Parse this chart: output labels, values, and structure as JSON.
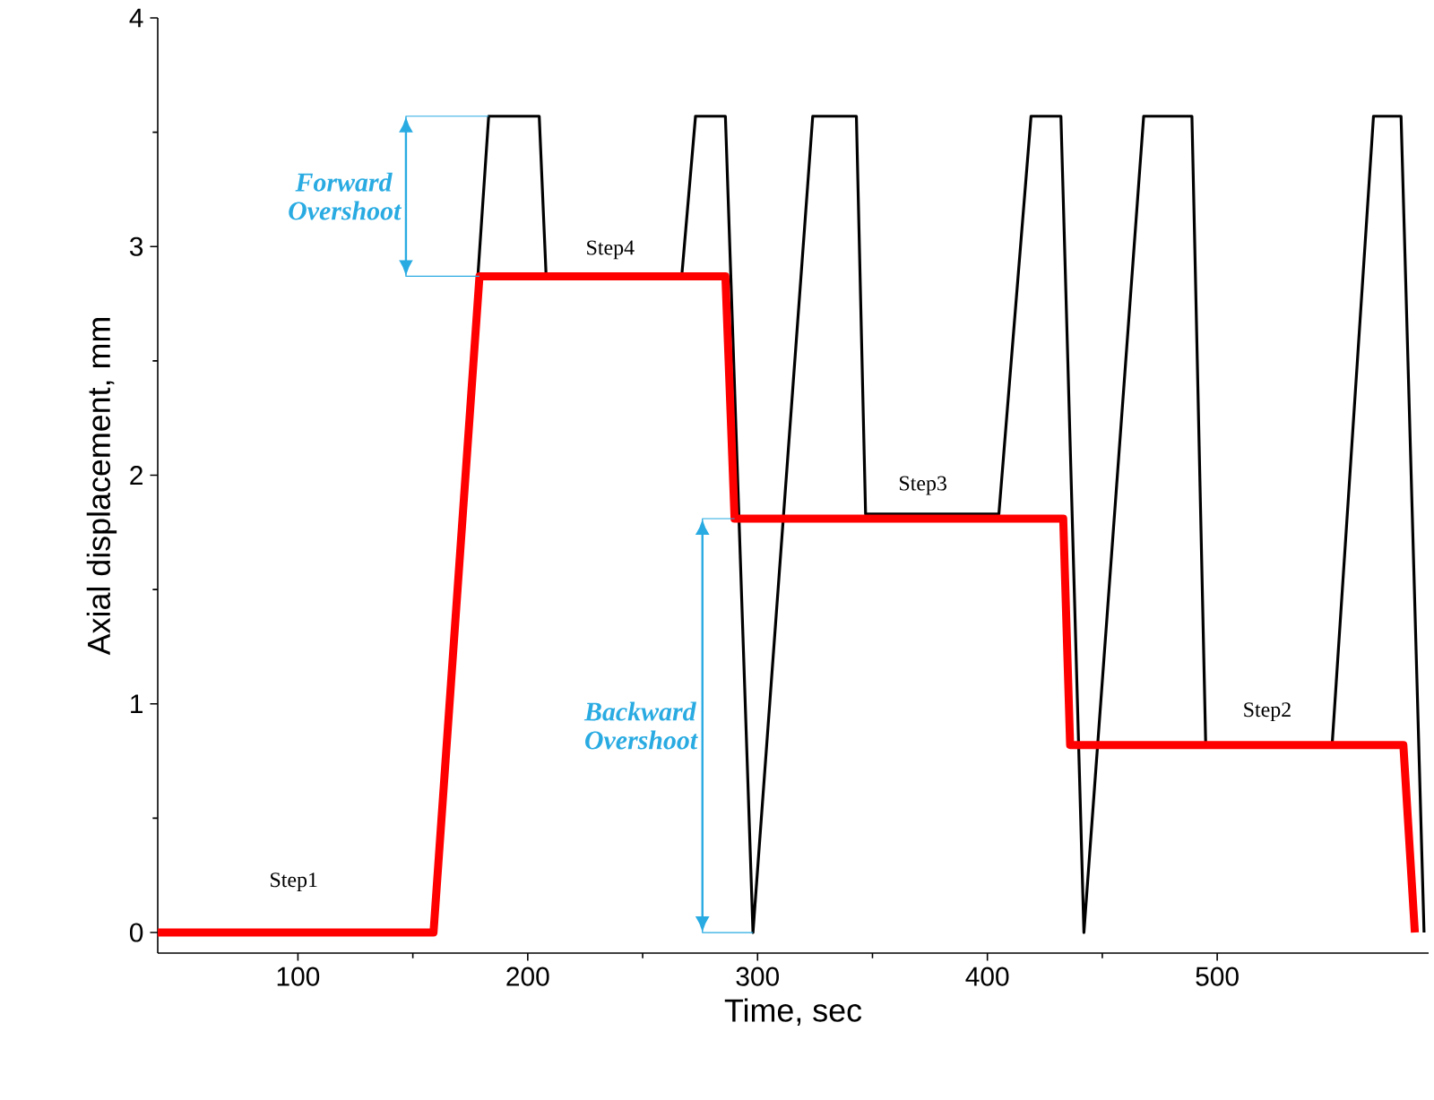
{
  "chart_data": {
    "type": "line",
    "xlabel": "Time, sec",
    "ylabel": "Axial displacement, mm",
    "xlim": [
      39,
      592
    ],
    "ylim": [
      -0.09,
      4
    ],
    "xticks": [
      100,
      200,
      300,
      400,
      500
    ],
    "yticks": [
      0,
      1,
      2,
      3,
      4
    ],
    "grid": false,
    "legend": false,
    "marker": "none",
    "line_style": "solid",
    "series": [
      {
        "color": "#000000",
        "x": [
          159,
          183,
          205,
          208,
          267,
          273,
          286,
          298,
          324,
          343,
          347,
          405,
          419,
          432,
          442,
          468,
          489,
          495,
          550,
          568,
          580,
          590
        ],
        "values": [
          0,
          3.57,
          3.57,
          2.87,
          2.87,
          3.57,
          3.57,
          0,
          3.57,
          3.57,
          1.83,
          1.83,
          3.57,
          3.57,
          0,
          3.57,
          3.57,
          0.82,
          0.82,
          3.57,
          3.57,
          0
        ]
      },
      {
        "color": "#ff0000",
        "x": [
          39,
          159,
          179,
          286,
          290,
          433,
          436,
          581,
          586
        ],
        "values": [
          0,
          0,
          2.87,
          2.87,
          1.81,
          1.81,
          0.82,
          0.82,
          0
        ]
      },
      {
        "name": "Forward Overshoot",
        "color": "#29abe2",
        "x": [
          183,
          147,
          147,
          179
        ],
        "values": [
          3.57,
          3.57,
          2.87,
          2.87
        ]
      },
      {
        "name": "Backward Overshoot",
        "color": "#29abe2",
        "x": [
          290,
          276,
          276,
          298
        ],
        "values": [
          1.81,
          1.81,
          0,
          0
        ]
      }
    ],
    "annotations": [
      "Step1",
      "Step4",
      "Step3",
      "Step2"
    ]
  }
}
